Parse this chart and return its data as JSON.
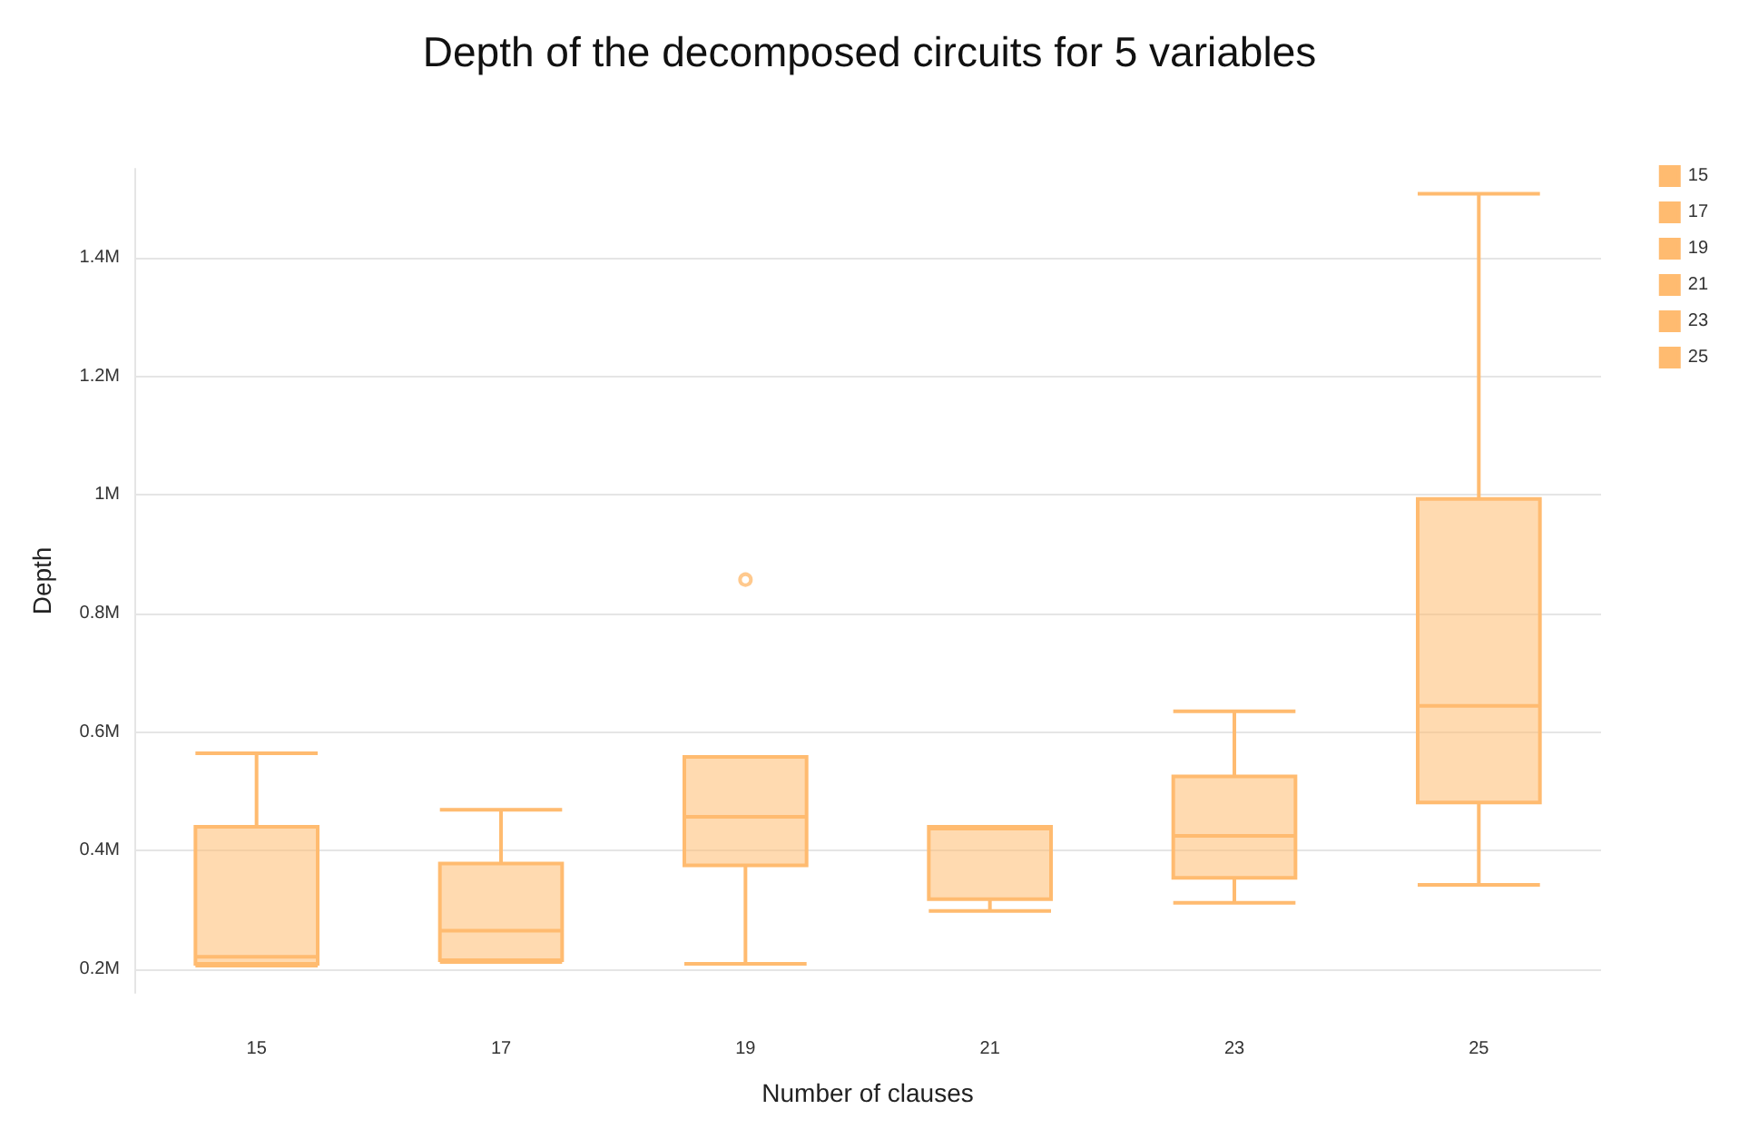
{
  "chart_data": {
    "type": "box",
    "title": "Depth of the decomposed circuits for 5 variables",
    "xlabel": "Number of clauses",
    "ylabel": "Depth",
    "categories": [
      "15",
      "17",
      "19",
      "21",
      "23",
      "25"
    ],
    "series": [
      {
        "name": "15",
        "color": "#ffbb70",
        "boxes": [
          {
            "low": 206000,
            "q1": 209000,
            "median": 221000,
            "q3": 440000,
            "high": 564000
          },
          null,
          null,
          null,
          null,
          null
        ]
      },
      {
        "name": "17",
        "color": "#ffbb70",
        "boxes": [
          null,
          {
            "low": 212000,
            "q1": 215000,
            "median": 265000,
            "q3": 378000,
            "high": 469000
          },
          null,
          null,
          null,
          null
        ]
      },
      {
        "name": "19",
        "color": "#ffbb70",
        "boxes": [
          null,
          null,
          {
            "low": 209000,
            "q1": 375000,
            "median": 457000,
            "q3": 558000,
            "high": 558000,
            "outliers": [
              857000
            ]
          },
          null,
          null,
          null
        ]
      },
      {
        "name": "21",
        "color": "#ffbb70",
        "boxes": [
          null,
          null,
          null,
          {
            "low": 298000,
            "q1": 318000,
            "median": 437000,
            "q3": 440000,
            "high": 440000
          },
          null,
          null
        ]
      },
      {
        "name": "23",
        "color": "#ffbb70",
        "boxes": [
          null,
          null,
          null,
          null,
          {
            "low": 312000,
            "q1": 354000,
            "median": 425000,
            "q3": 525000,
            "high": 635000
          },
          null
        ]
      },
      {
        "name": "25",
        "color": "#ffbb70",
        "boxes": [
          null,
          null,
          null,
          null,
          null,
          {
            "low": 342000,
            "q1": 481000,
            "median": 644000,
            "q3": 993000,
            "high": 1508000
          }
        ]
      }
    ],
    "ylim": [
      160000,
      1550000
    ],
    "yticks": [
      {
        "value": 200000,
        "label": "0.2M"
      },
      {
        "value": 400000,
        "label": "0.4M"
      },
      {
        "value": 600000,
        "label": "0.6M"
      },
      {
        "value": 800000,
        "label": "0.8M"
      },
      {
        "value": 1000000,
        "label": "1M"
      },
      {
        "value": 1200000,
        "label": "1.2M"
      },
      {
        "value": 1400000,
        "label": "1.4M"
      }
    ],
    "grid": "y",
    "legend": "top right",
    "marker": "circle"
  }
}
